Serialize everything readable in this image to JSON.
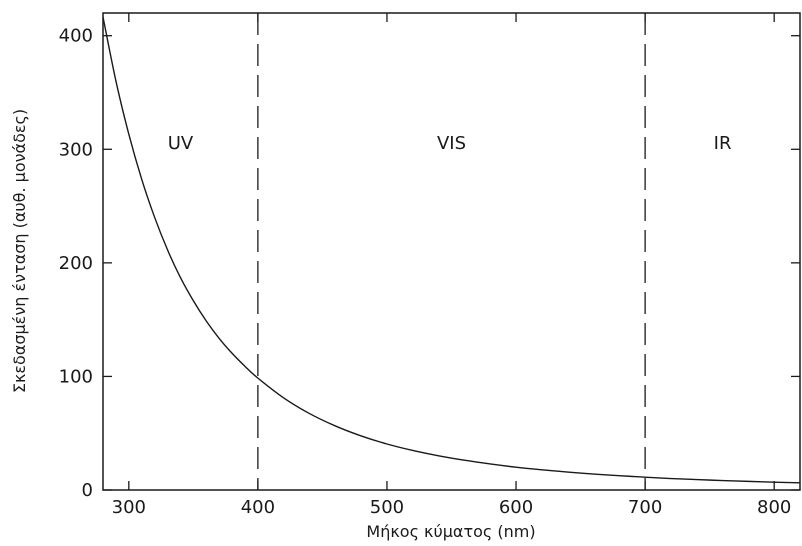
{
  "chart_data": {
    "type": "line",
    "title": "",
    "xlabel": "Μήκος κύματος (nm)",
    "ylabel": "Σκεδασμένη ένταση (αυθ. μονάδες)",
    "xlim": [
      280,
      820
    ],
    "ylim": [
      0,
      420
    ],
    "xticks": [
      300,
      400,
      500,
      600,
      700,
      800
    ],
    "yticks": [
      0,
      100,
      200,
      300,
      400
    ],
    "xtick_labels": [
      "300",
      "400",
      "500",
      "600",
      "700",
      "800"
    ],
    "ytick_labels": [
      "0",
      "100",
      "200",
      "300",
      "400"
    ],
    "grid": false,
    "region_dividers": [
      400,
      700
    ],
    "regions": [
      {
        "label": "UV",
        "x": 340
      },
      {
        "label": "VIS",
        "x": 550
      },
      {
        "label": "IR",
        "x": 760
      }
    ],
    "series": [
      {
        "x": [
          280,
          290,
          300,
          310,
          320,
          330,
          340,
          350,
          360,
          370,
          380,
          390,
          400,
          420,
          440,
          460,
          480,
          500,
          520,
          540,
          560,
          580,
          600,
          620,
          640,
          660,
          680,
          700,
          720,
          740,
          760,
          780,
          800,
          820
        ],
        "values": [
          416.5,
          360.2,
          313.3,
          273.6,
          240.1,
          211.4,
          187.0,
          166.6,
          148.8,
          133.5,
          120.4,
          108.9,
          98.5,
          81.1,
          67.3,
          56.4,
          47.6,
          40.5,
          34.8,
          30.1,
          26.2,
          22.9,
          20.1,
          17.8,
          15.8,
          14.0,
          12.6,
          11.3,
          10.1,
          9.2,
          8.3,
          7.6,
          6.9,
          6.3
        ]
      }
    ]
  }
}
